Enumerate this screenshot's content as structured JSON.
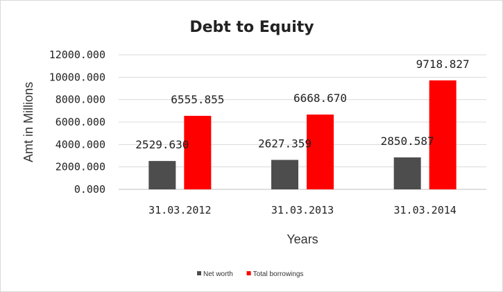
{
  "chart_data": {
    "type": "bar",
    "title": "Debt to Equity",
    "xlabel": "Years",
    "ylabel": "Amt in Millions",
    "categories": [
      "31.03.2012",
      "31.03.2013",
      "31.03.2014"
    ],
    "series": [
      {
        "name": "Net worth",
        "values": [
          2529.63,
          2627.359,
          2850.587
        ],
        "labels": [
          "2529.630",
          "2627.359",
          "2850.587"
        ],
        "color": "#4d4d4d"
      },
      {
        "name": "Total borrowings",
        "values": [
          6555.855,
          6668.67,
          9718.827
        ],
        "labels": [
          "6555.855",
          "6668.670",
          "9718.827"
        ],
        "color": "#ff0000"
      }
    ],
    "ylim": [
      0,
      12000
    ],
    "yticks": [
      "0.000",
      "2000.000",
      "4000.000",
      "6000.000",
      "8000.000",
      "10000.000",
      "12000.000"
    ],
    "grid": true,
    "legend": "bottom"
  }
}
